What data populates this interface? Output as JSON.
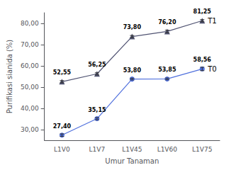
{
  "chart_data": {
    "type": "line",
    "xlabel": "Umur Tanaman",
    "ylabel": "Purifikasi sianida (%)",
    "categories": [
      "L1V0",
      "L1V7",
      "L1V45",
      "L1V60",
      "L1V75"
    ],
    "series": [
      {
        "name": "T0",
        "marker": "circle",
        "values": [
          27.4,
          35.15,
          53.8,
          53.85,
          58.56
        ],
        "errors": [
          0.6,
          0.5,
          0.4,
          0.4,
          0.8
        ],
        "value_labels": [
          "27,40",
          "35,15",
          "53,80",
          "53,85",
          "58,56"
        ]
      },
      {
        "name": "T1",
        "marker": "triangle",
        "values": [
          52.55,
          56.25,
          73.8,
          76.2,
          81.25
        ],
        "errors": [
          0.5,
          0.5,
          0.5,
          0.6,
          0.5
        ],
        "value_labels": [
          "52,55",
          "56,25",
          "73,80",
          "76,20",
          "81,25"
        ]
      }
    ],
    "ylim": [
      25,
      85
    ],
    "yticks": [
      {
        "value": 30,
        "label": "30,00"
      },
      {
        "value": 40,
        "label": "40,00"
      },
      {
        "value": 50,
        "label": "50,00"
      },
      {
        "value": 60,
        "label": "60,00"
      },
      {
        "value": 70,
        "label": "70,00"
      },
      {
        "value": 80,
        "label": "80,00"
      }
    ],
    "grid": false,
    "data_labels": true
  }
}
